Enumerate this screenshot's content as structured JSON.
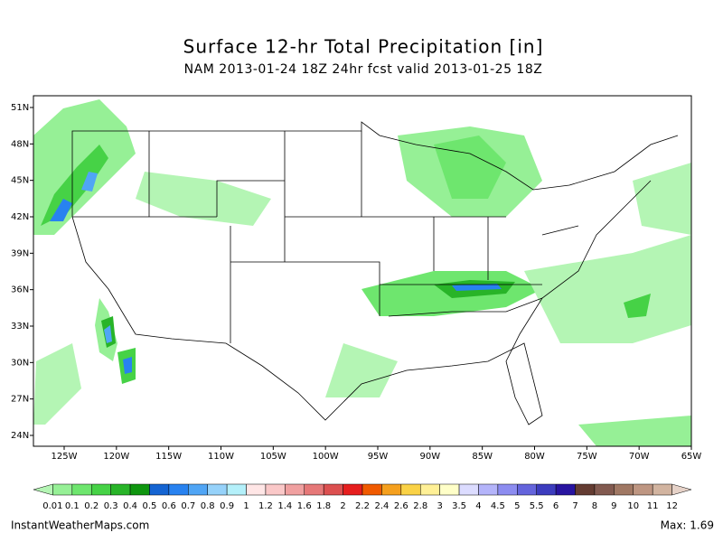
{
  "header": {
    "title": "Surface 12-hr Total Precipitation [in]",
    "subtitle": "NAM 2013-01-24 18Z 24hr fcst valid 2013-01-25 18Z"
  },
  "map": {
    "lat_labels": [
      "51N",
      "48N",
      "45N",
      "42N",
      "39N",
      "36N",
      "33N",
      "30N",
      "27N",
      "24N"
    ],
    "lon_labels": [
      "125W",
      "120W",
      "115W",
      "110W",
      "105W",
      "100W",
      "95W",
      "90W",
      "85W",
      "80W",
      "75W",
      "70W",
      "65W"
    ]
  },
  "colorbar": {
    "labels": [
      "0.01",
      "0.1",
      "0.2",
      "0.3",
      "0.4",
      "0.5",
      "0.6",
      "0.7",
      "0.8",
      "0.9",
      "1",
      "1.2",
      "1.4",
      "1.6",
      "1.8",
      "2",
      "2.2",
      "2.4",
      "2.6",
      "2.8",
      "3",
      "3.5",
      "4",
      "4.5",
      "5",
      "5.5",
      "6",
      "7",
      "8",
      "9",
      "10",
      "11",
      "12"
    ],
    "colors": [
      "#b4f5b4",
      "#96f096",
      "#6ee66e",
      "#46d246",
      "#28b428",
      "#0f960f",
      "#1464d2",
      "#2882f0",
      "#50a5f5",
      "#96d2fa",
      "#b4f0fa",
      "#ffe6e6",
      "#fac8c8",
      "#f0a0a0",
      "#e67878",
      "#dc5050",
      "#e61e1e",
      "#f05a00",
      "#f5a01e",
      "#fad246",
      "#fff096",
      "#ffffc8",
      "#dcdcff",
      "#b4b4fa",
      "#8c8cf0",
      "#6464dc",
      "#3c3cbe",
      "#2814a0",
      "#643c32",
      "#825a50",
      "#a07864",
      "#be9682",
      "#d2b4a0",
      "#e6d2c8"
    ]
  },
  "footer": {
    "source": "InstantWeatherMaps.com",
    "max": "Max:  1.69"
  }
}
